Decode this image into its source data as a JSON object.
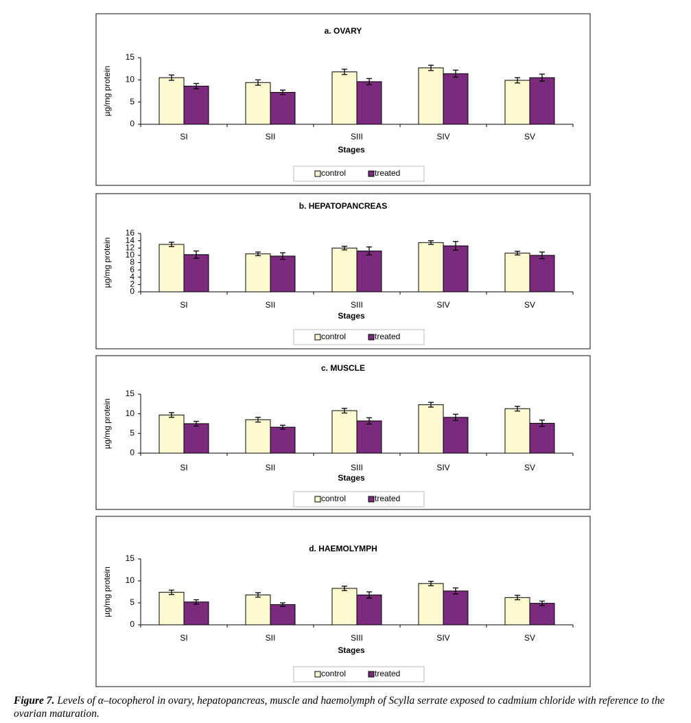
{
  "chart_data": [
    {
      "type": "bar",
      "title": "a. OVARY",
      "xlabel": "Stages",
      "ylabel": "µg/mg protein",
      "categories": [
        "SI",
        "SII",
        "SIII",
        "SIV",
        "SV"
      ],
      "series": [
        {
          "name": "control",
          "color": "#fffbd0",
          "values": [
            10.5,
            9.4,
            11.8,
            12.7,
            9.9
          ],
          "errors": [
            0.6,
            0.6,
            0.6,
            0.6,
            0.6
          ]
        },
        {
          "name": "treated",
          "color": "#7b2a7d",
          "values": [
            8.6,
            7.2,
            9.6,
            11.4,
            10.5
          ],
          "errors": [
            0.6,
            0.5,
            0.7,
            0.8,
            0.8
          ]
        }
      ],
      "ylim": [
        0,
        15
      ],
      "yticks": [
        0,
        5,
        10,
        15
      ],
      "grid": false,
      "legend": "bottom"
    },
    {
      "type": "bar",
      "title": "b. HEPATOPANCREAS",
      "xlabel": "Stages",
      "ylabel": "µg/mg protein",
      "categories": [
        "SI",
        "SII",
        "SIII",
        "SIV",
        "SV"
      ],
      "series": [
        {
          "name": "control",
          "color": "#fffbd0",
          "values": [
            13.0,
            10.4,
            12.0,
            13.5,
            10.6
          ],
          "errors": [
            0.6,
            0.5,
            0.5,
            0.5,
            0.5
          ]
        },
        {
          "name": "treated",
          "color": "#7b2a7d",
          "values": [
            10.2,
            9.8,
            11.2,
            12.6,
            10.0
          ],
          "errors": [
            1.0,
            0.9,
            1.1,
            1.2,
            0.9
          ]
        }
      ],
      "ylim": [
        0,
        16
      ],
      "yticks": [
        0,
        2,
        4,
        6,
        8,
        10,
        12,
        14,
        16
      ],
      "grid": false,
      "legend": "bottom"
    },
    {
      "type": "bar",
      "title": "c. MUSCLE",
      "xlabel": "Stages",
      "ylabel": "µg/mg protein",
      "categories": [
        "SI",
        "SII",
        "SIII",
        "SIV",
        "SV"
      ],
      "series": [
        {
          "name": "control",
          "color": "#fffbd0",
          "values": [
            9.7,
            8.5,
            10.8,
            12.3,
            11.3
          ],
          "errors": [
            0.6,
            0.6,
            0.6,
            0.6,
            0.6
          ]
        },
        {
          "name": "treated",
          "color": "#7b2a7d",
          "values": [
            7.5,
            6.6,
            8.2,
            9.1,
            7.6
          ],
          "errors": [
            0.6,
            0.5,
            0.8,
            0.8,
            0.8
          ]
        }
      ],
      "ylim": [
        0,
        15
      ],
      "yticks": [
        0,
        5,
        10,
        15
      ],
      "grid": false,
      "legend": "bottom"
    },
    {
      "type": "bar",
      "title": "d. HAEMOLYMPH",
      "xlabel": "Stages",
      "ylabel": "µg/mg protein",
      "categories": [
        "SI",
        "SII",
        "SIII",
        "SIV",
        "SV"
      ],
      "series": [
        {
          "name": "control",
          "color": "#fffbd0",
          "values": [
            7.4,
            6.8,
            8.3,
            9.4,
            6.2
          ],
          "errors": [
            0.5,
            0.5,
            0.5,
            0.5,
            0.5
          ]
        },
        {
          "name": "treated",
          "color": "#7b2a7d",
          "values": [
            5.2,
            4.6,
            6.8,
            7.7,
            4.9
          ],
          "errors": [
            0.5,
            0.4,
            0.7,
            0.7,
            0.5
          ]
        }
      ],
      "ylim": [
        0,
        15
      ],
      "yticks": [
        0,
        5,
        10,
        15
      ],
      "grid": false,
      "legend": "bottom"
    }
  ],
  "caption": {
    "label": "Figure 7.",
    "text": "Levels of α–tocopherol in ovary, hepatopancreas, muscle and haemolymph of Scylla serrate exposed to cadmium chloride with reference to the ovarian maturation."
  }
}
